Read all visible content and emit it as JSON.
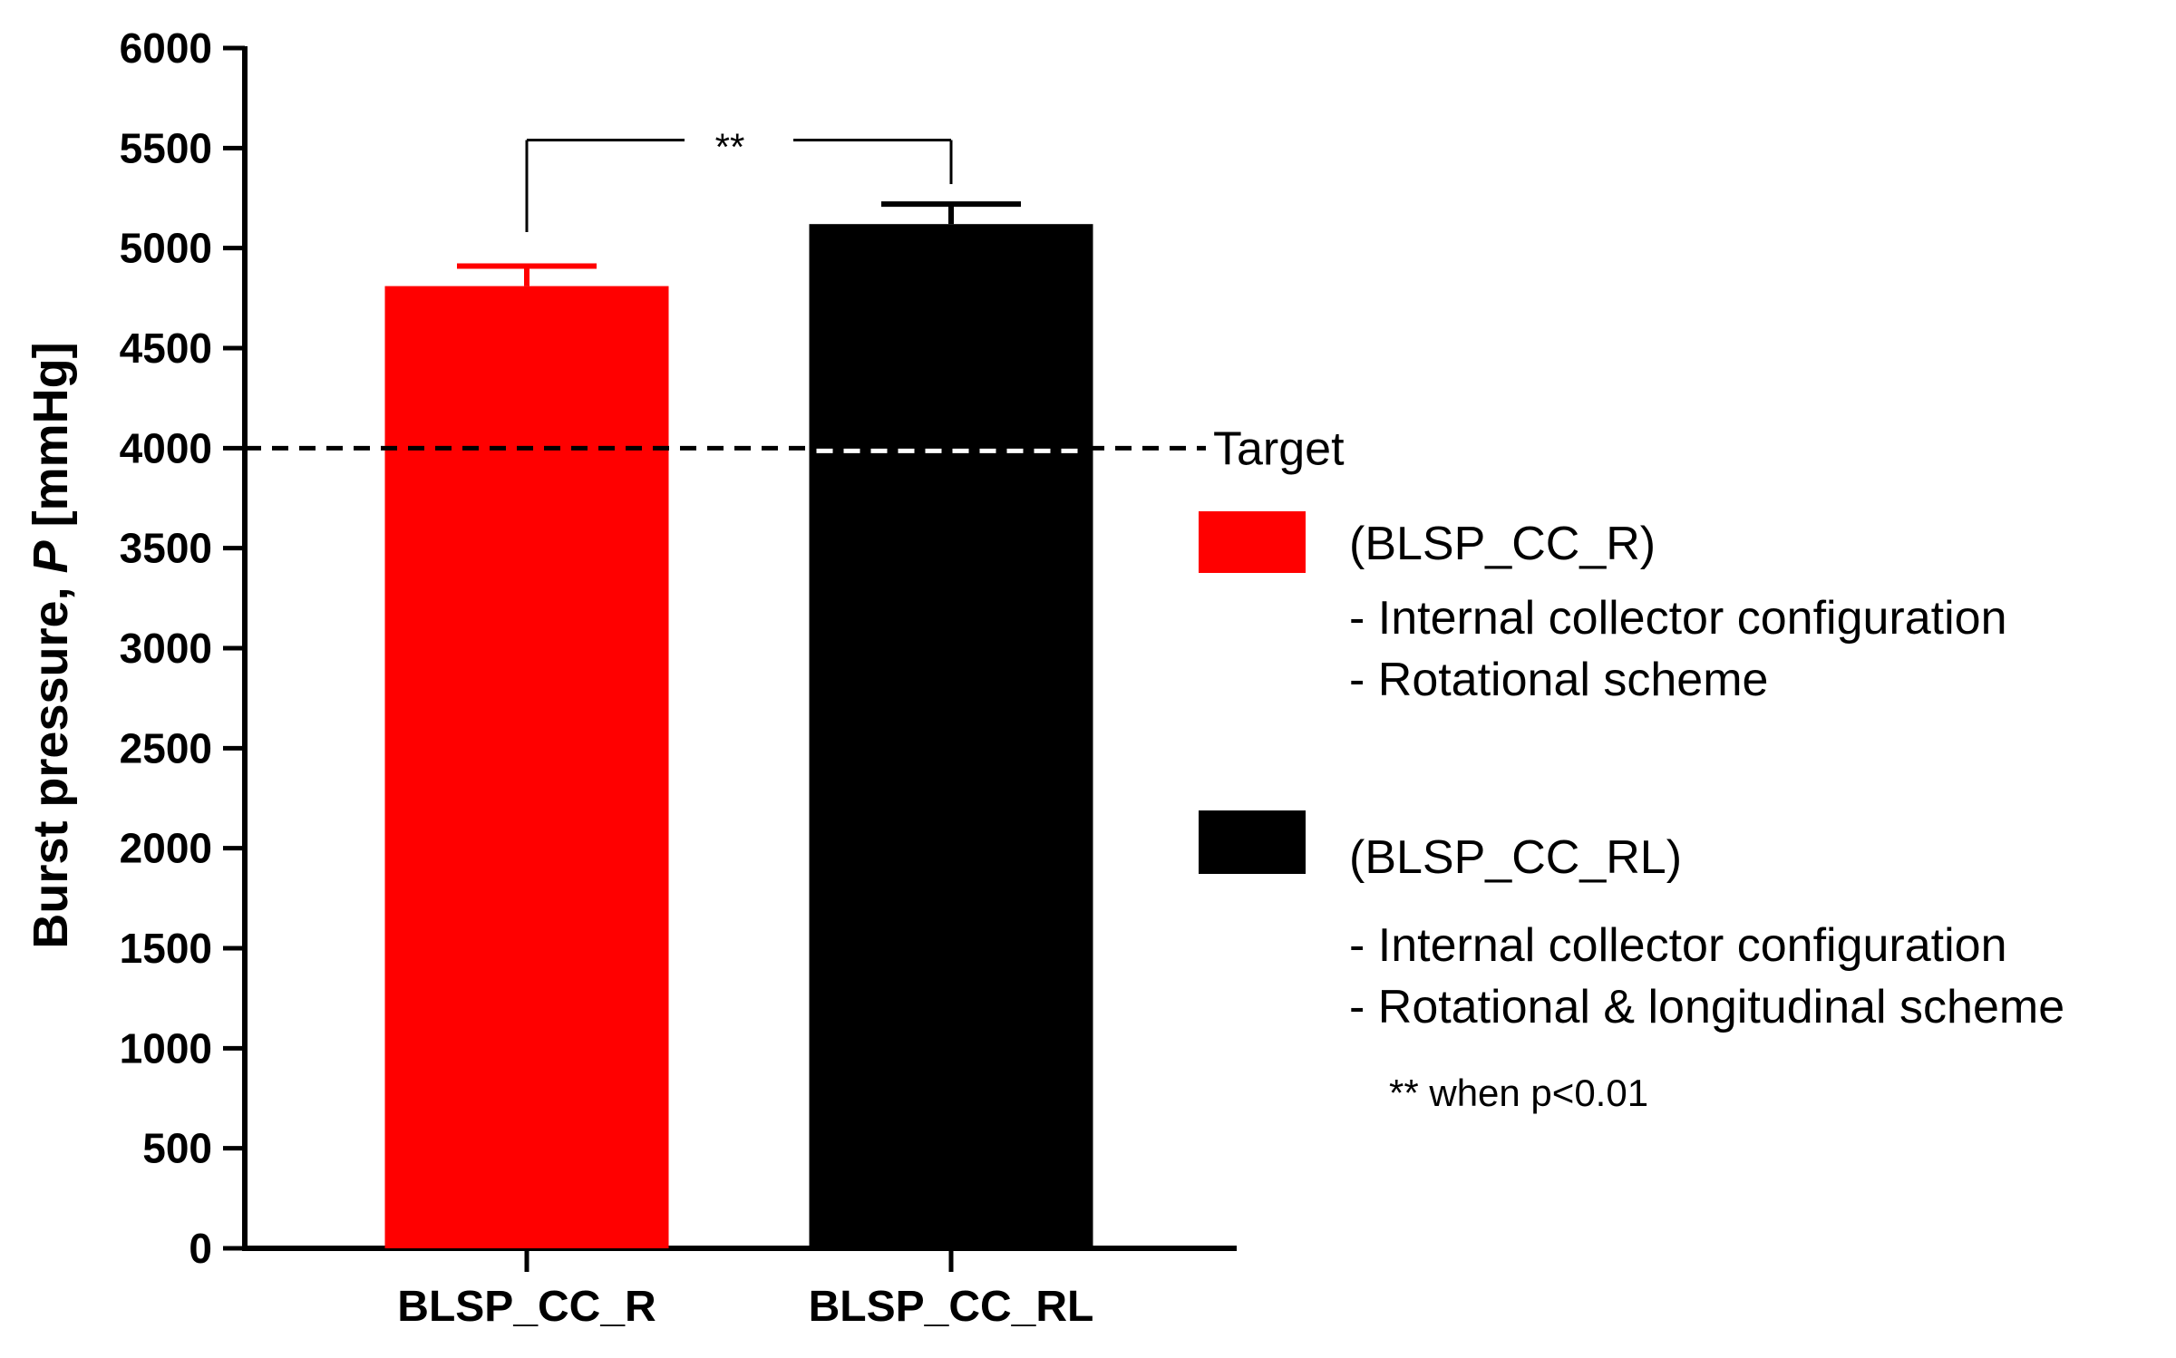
{
  "chart_data": {
    "type": "bar",
    "categories": [
      "BLSP_CC_R",
      "BLSP_CC_RL"
    ],
    "values": [
      4810,
      5120
    ],
    "errors": [
      100,
      100
    ],
    "colors": [
      "#ff0000",
      "#000000"
    ],
    "ylabel_main": "Burst pressure, ",
    "ylabel_italic": "P",
    "ylabel_unit": " [mmHg]",
    "ylim": [
      0,
      6000
    ],
    "yticks": [
      0,
      500,
      1000,
      1500,
      2000,
      2500,
      3000,
      3500,
      4000,
      4500,
      5000,
      5500,
      6000
    ],
    "grid": false,
    "reference_line": {
      "value": 4000,
      "label": "Target",
      "style": "dashed"
    },
    "significance": {
      "between": [
        "BLSP_CC_R",
        "BLSP_CC_RL"
      ],
      "marker": "**"
    },
    "legend": {
      "placement": "right",
      "entries": [
        {
          "color": "#ff0000",
          "title": "(BLSP_CC_R)",
          "lines": [
            "- Internal collector configuration",
            "- Rotational scheme"
          ]
        },
        {
          "color": "#000000",
          "title": "(BLSP_CC_RL)",
          "lines": [
            "- Internal collector configuration",
            "- Rotational & longitudinal scheme"
          ]
        }
      ]
    },
    "note": "** when p<0.01"
  }
}
